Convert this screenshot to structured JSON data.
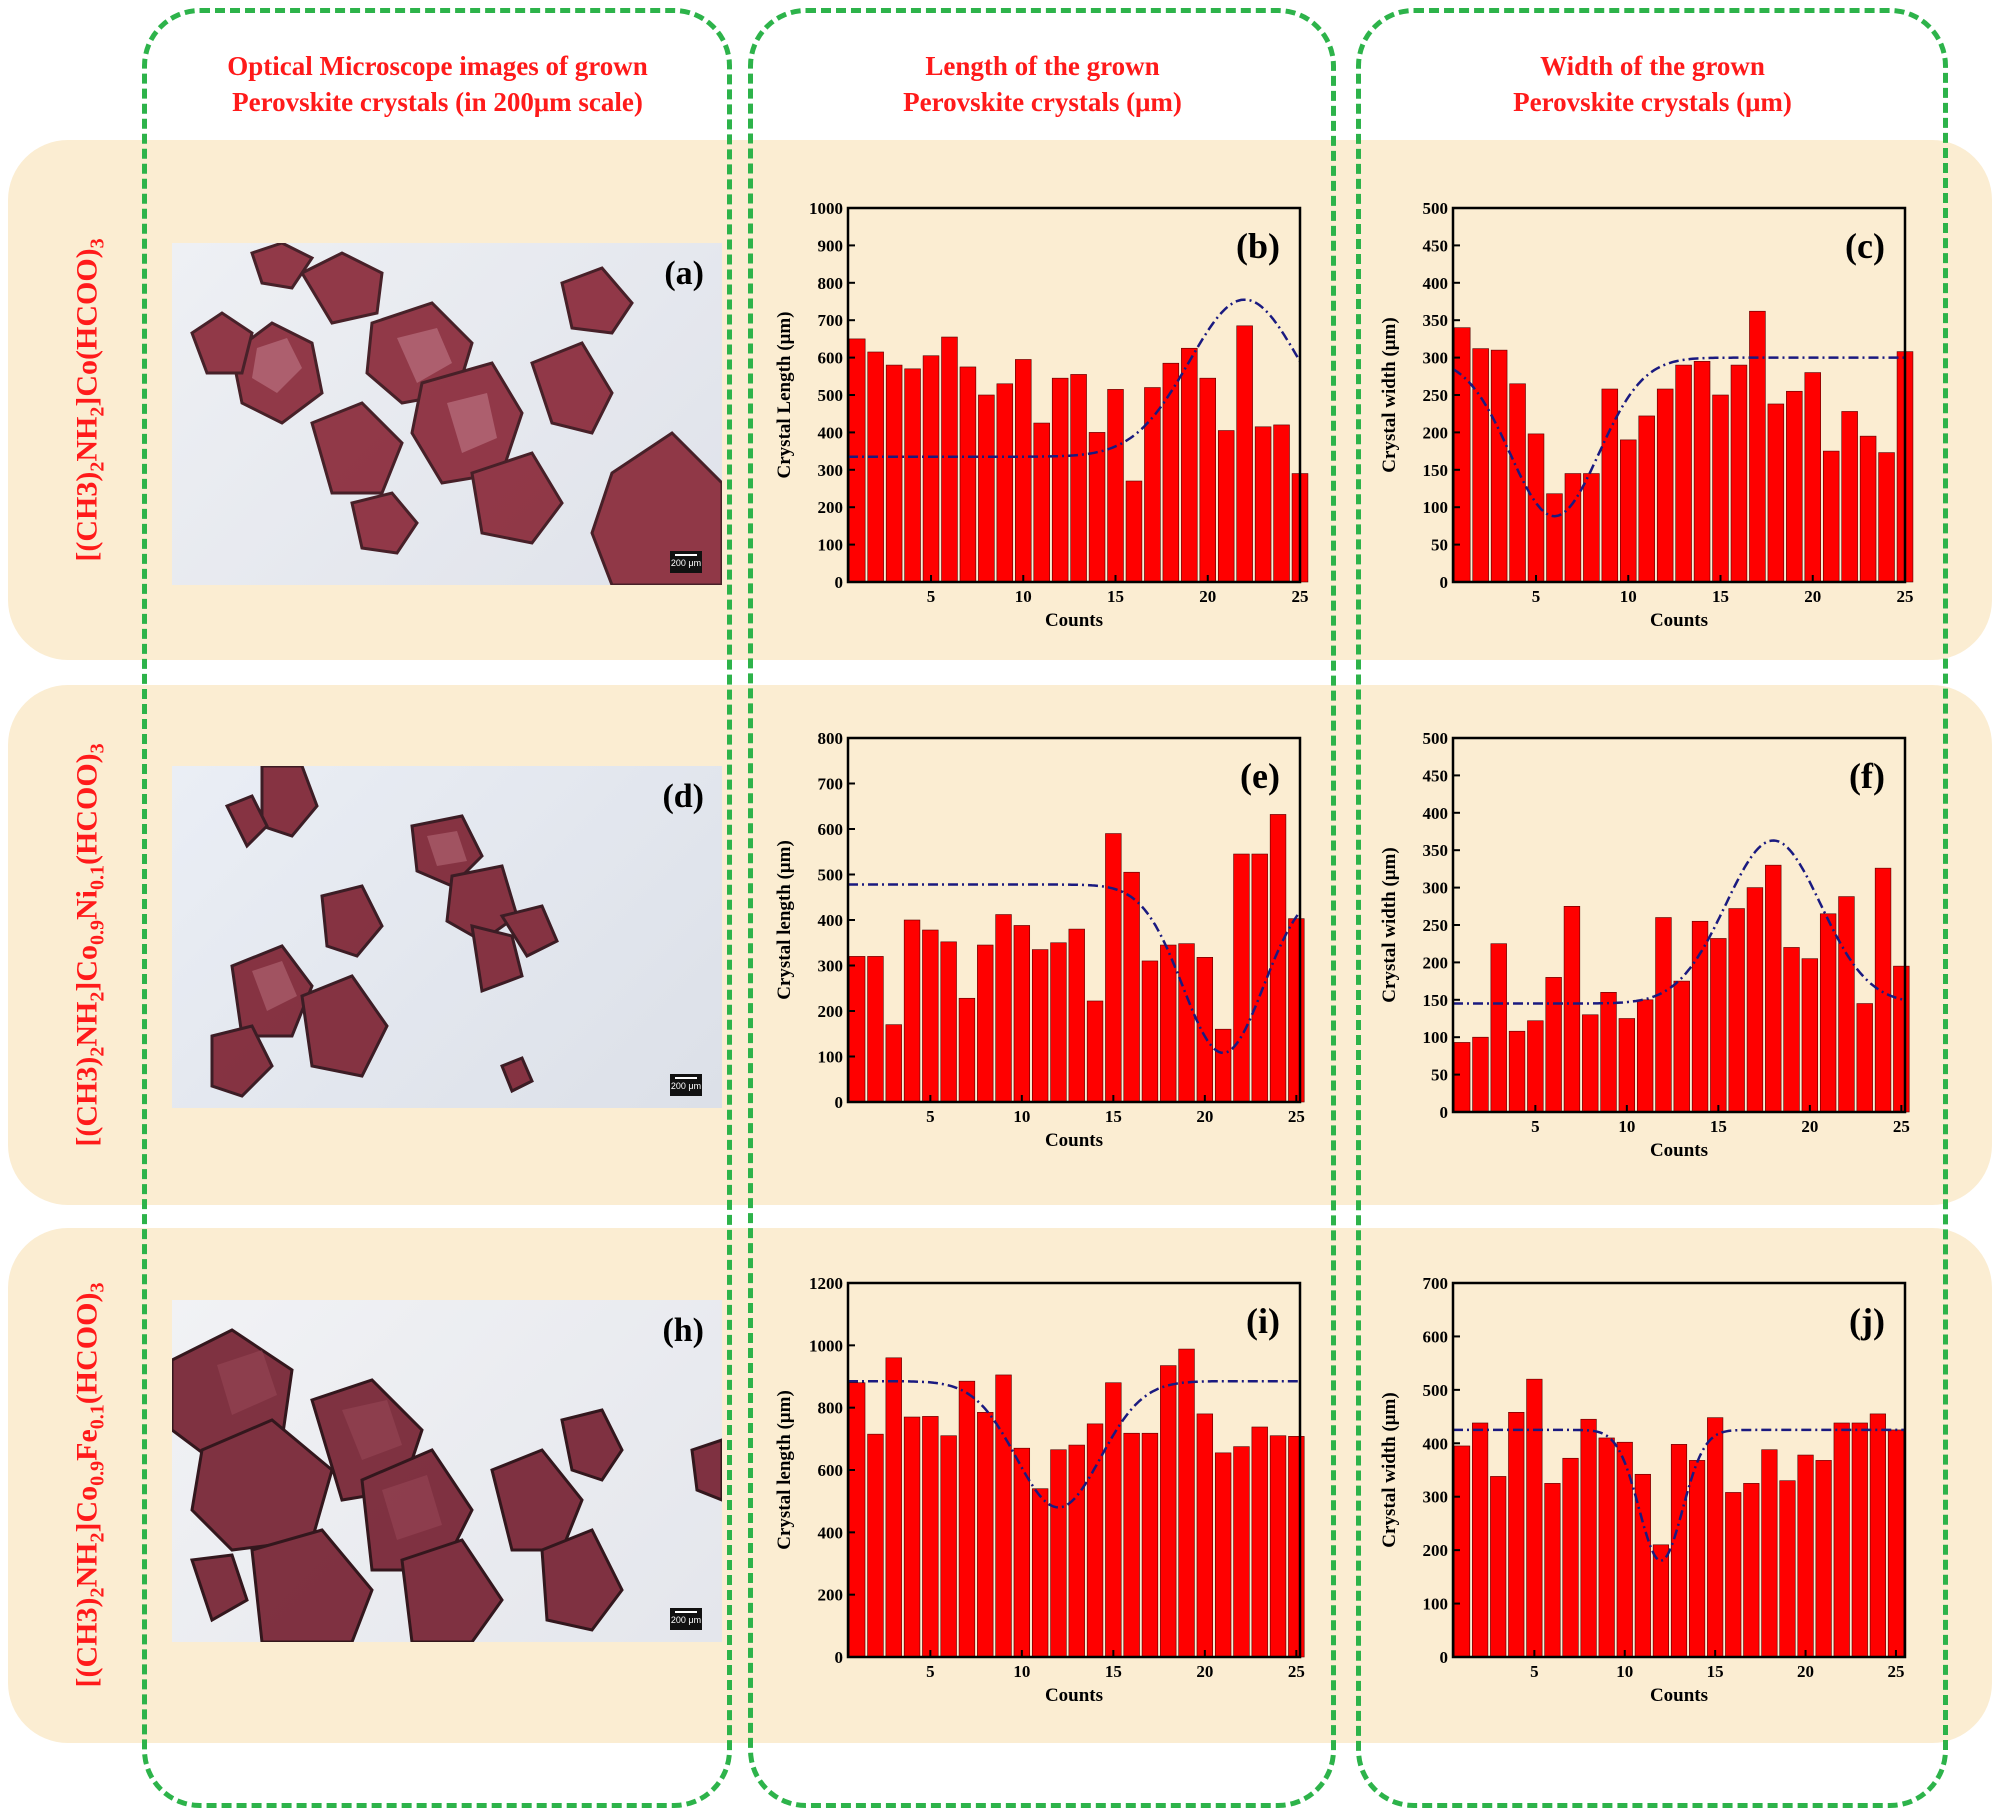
{
  "columns": [
    {
      "title_line1": "Optical Microscope images of grown",
      "title_line2": "Perovskite crystals (in 200μm scale)"
    },
    {
      "title_line1": "Length of the grown",
      "title_line2": "Perovskite crystals (μm)"
    },
    {
      "title_line1": "Width of the grown",
      "title_line2": "Perovskite crystals (μm)"
    }
  ],
  "rows": [
    {
      "label_a": "[(CH3)",
      "sub1": "2",
      "label_b": "NH",
      "sub2": "2",
      "label_c": "]Co(HCOO)",
      "sub3": "3",
      "label_d": "",
      "sub4": "",
      "label_e": ""
    },
    {
      "label_a": "[(CH3)",
      "sub1": "2",
      "label_b": "NH",
      "sub2": "2",
      "label_c": "]Co",
      "sub3": "0.9",
      "label_d": "Ni",
      "sub4": "0.1",
      "label_e": "(HCOO)",
      "sub5": "3"
    },
    {
      "label_a": "[(CH3)",
      "sub1": "2",
      "label_b": "NH",
      "sub2": "2",
      "label_c": "]Co",
      "sub3": "0.9",
      "label_d": "Fe",
      "sub4": "0.1",
      "label_e": "(HCOO)",
      "sub5": "3"
    }
  ],
  "micrographs": [
    {
      "tag": "(a)",
      "scale": "200 μm"
    },
    {
      "tag": "(d)",
      "scale": "200 μm"
    },
    {
      "tag": "(h)",
      "scale": "200 μm"
    }
  ],
  "colors": {
    "bar": "#ff0000",
    "fit": "#1a1a80",
    "band": "#fbedd2",
    "frame": "#2db34a",
    "title": "#ff1a1a"
  },
  "chart_data": [
    {
      "id": "b",
      "type": "bar",
      "tag": "(b)",
      "xlabel": "Counts",
      "ylabel": "Crystal Length (μm)",
      "ylim": [
        0,
        1000
      ],
      "yticks": [
        0,
        100,
        200,
        300,
        400,
        500,
        600,
        700,
        800,
        900,
        1000
      ],
      "xlim": [
        0.5,
        25
      ],
      "xticks": [
        5,
        10,
        15,
        20,
        25
      ],
      "x": [
        1,
        2,
        3,
        4,
        5,
        6,
        7,
        8,
        9,
        10,
        11,
        12,
        13,
        14,
        15,
        16,
        17,
        18,
        19,
        20,
        21,
        22,
        23,
        24,
        25
      ],
      "values": [
        650,
        615,
        580,
        570,
        605,
        655,
        575,
        500,
        530,
        595,
        425,
        545,
        555,
        400,
        515,
        270,
        520,
        585,
        625,
        545,
        405,
        685,
        415,
        420,
        290
      ],
      "fit": {
        "kind": "gauss",
        "base": 335,
        "amp": 420,
        "center": 22,
        "sigma": 3
      }
    },
    {
      "id": "c",
      "type": "bar",
      "tag": "(c)",
      "xlabel": "Counts",
      "ylabel": "Crystal width (μm)",
      "ylim": [
        0,
        500
      ],
      "yticks": [
        0,
        50,
        100,
        150,
        200,
        250,
        300,
        350,
        400,
        450,
        500
      ],
      "xlim": [
        0.5,
        25
      ],
      "xticks": [
        5,
        10,
        15,
        20,
        25
      ],
      "x": [
        1,
        2,
        3,
        4,
        5,
        6,
        7,
        8,
        9,
        10,
        11,
        12,
        13,
        14,
        15,
        16,
        17,
        18,
        19,
        20,
        21,
        22,
        23,
        24,
        25
      ],
      "values": [
        340,
        312,
        310,
        265,
        198,
        118,
        145,
        145,
        258,
        190,
        222,
        258,
        290,
        295,
        250,
        290,
        362,
        238,
        255,
        280,
        175,
        228,
        195,
        173,
        308
      ],
      "fit": {
        "kind": "gauss",
        "base": 300,
        "amp": -212,
        "center": 6,
        "sigma": 2.4
      }
    },
    {
      "id": "e",
      "type": "bar",
      "tag": "(e)",
      "xlabel": "Counts",
      "ylabel": "Crystal length (μm)",
      "ylim": [
        0,
        800
      ],
      "yticks": [
        0,
        100,
        200,
        300,
        400,
        500,
        600,
        700,
        800
      ],
      "xlim": [
        0.5,
        25.2
      ],
      "xticks": [
        5,
        10,
        15,
        20,
        25
      ],
      "x": [
        1,
        2,
        3,
        4,
        5,
        6,
        7,
        8,
        9,
        10,
        11,
        12,
        13,
        14,
        15,
        16,
        17,
        18,
        19,
        20,
        21,
        22,
        23,
        24,
        25
      ],
      "values": [
        320,
        320,
        170,
        400,
        378,
        352,
        228,
        345,
        412,
        388,
        335,
        350,
        380,
        222,
        590,
        505,
        310,
        345,
        348,
        318,
        160,
        545,
        545,
        632,
        403
      ],
      "fit": {
        "kind": "gauss",
        "base": 478,
        "amp": -370,
        "center": 21,
        "sigma": 2.2
      }
    },
    {
      "id": "f",
      "type": "bar",
      "tag": "(f)",
      "xlabel": "Counts",
      "ylabel": "Crystal width (μm)",
      "ylim": [
        0,
        500
      ],
      "yticks": [
        0,
        50,
        100,
        150,
        200,
        250,
        300,
        350,
        400,
        450,
        500
      ],
      "xlim": [
        0.5,
        25.2
      ],
      "xticks": [
        5,
        10,
        15,
        20,
        25
      ],
      "x": [
        1,
        2,
        3,
        4,
        5,
        6,
        7,
        8,
        9,
        10,
        11,
        12,
        13,
        14,
        15,
        16,
        17,
        18,
        19,
        20,
        21,
        22,
        23,
        24,
        25
      ],
      "values": [
        93,
        100,
        225,
        108,
        122,
        180,
        275,
        130,
        160,
        125,
        150,
        260,
        175,
        255,
        232,
        272,
        300,
        330,
        220,
        205,
        265,
        288,
        145,
        326,
        195
      ],
      "fit": {
        "kind": "gauss",
        "base": 145,
        "amp": 218,
        "center": 18,
        "sigma": 2.6
      }
    },
    {
      "id": "i",
      "type": "bar",
      "tag": "(i)",
      "xlabel": "Counts",
      "ylabel": "Crystal length (μm)",
      "ylim": [
        0,
        1200
      ],
      "yticks": [
        0,
        200,
        400,
        600,
        800,
        1000,
        1200
      ],
      "xlim": [
        0.5,
        25.2
      ],
      "xticks": [
        5,
        10,
        15,
        20,
        25
      ],
      "x": [
        1,
        2,
        3,
        4,
        5,
        6,
        7,
        8,
        9,
        10,
        11,
        12,
        13,
        14,
        15,
        16,
        17,
        18,
        19,
        20,
        21,
        22,
        23,
        24,
        25
      ],
      "values": [
        880,
        715,
        960,
        770,
        772,
        710,
        885,
        785,
        905,
        670,
        540,
        665,
        680,
        748,
        880,
        718,
        718,
        935,
        988,
        780,
        655,
        675,
        738,
        710,
        708
      ],
      "fit": {
        "kind": "gauss",
        "base": 885,
        "amp": -405,
        "center": 12,
        "sigma": 2.3
      }
    },
    {
      "id": "j",
      "type": "bar",
      "tag": "(j)",
      "xlabel": "Counts",
      "ylabel": "Crystal width (μm)",
      "ylim": [
        0,
        700
      ],
      "yticks": [
        0,
        100,
        200,
        300,
        400,
        500,
        600,
        700
      ],
      "xlim": [
        0.5,
        25.5
      ],
      "xticks": [
        5,
        10,
        15,
        20,
        25
      ],
      "x": [
        1,
        2,
        3,
        4,
        5,
        6,
        7,
        8,
        9,
        10,
        11,
        12,
        13,
        14,
        15,
        16,
        17,
        18,
        19,
        20,
        21,
        22,
        23,
        24,
        25
      ],
      "values": [
        395,
        438,
        338,
        458,
        520,
        325,
        372,
        445,
        410,
        402,
        342,
        210,
        398,
        368,
        448,
        308,
        325,
        388,
        330,
        378,
        368,
        438,
        438,
        455,
        425
      ],
      "fit": {
        "kind": "gauss",
        "base": 425,
        "amp": -245,
        "center": 12,
        "sigma": 1.2
      }
    }
  ]
}
